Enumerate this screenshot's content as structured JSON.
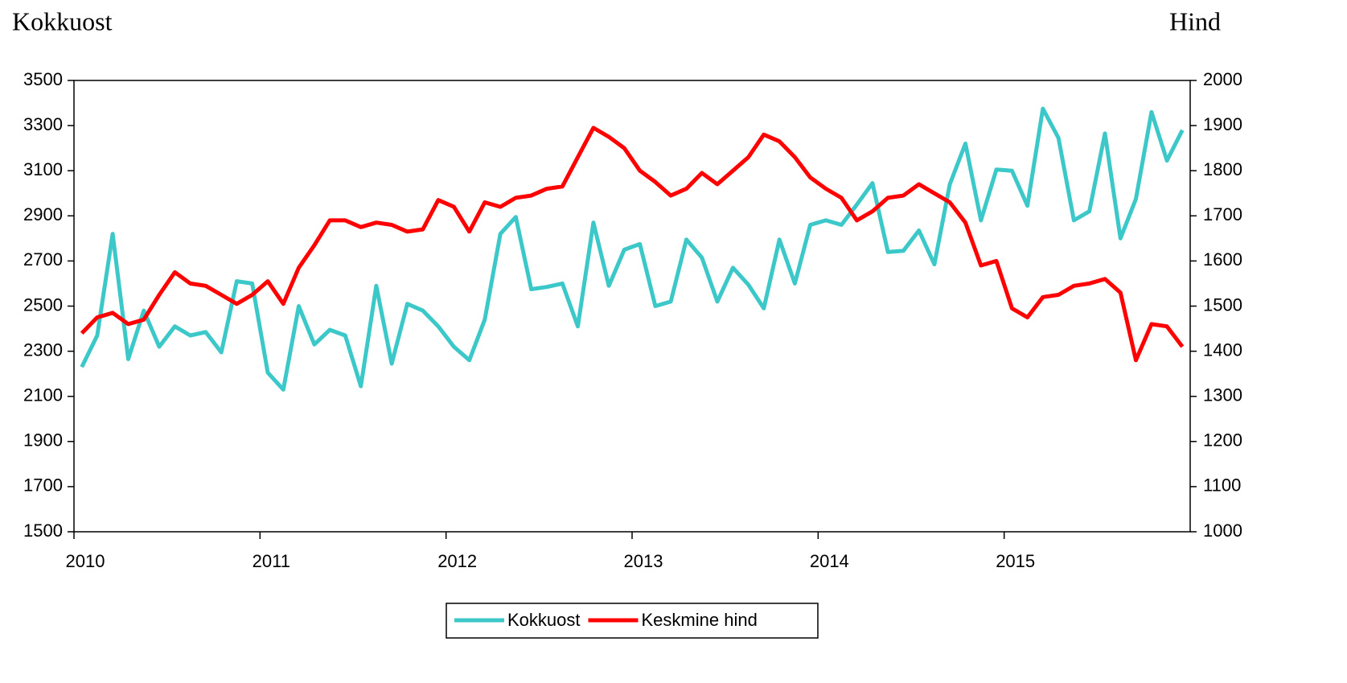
{
  "chart_data": {
    "type": "line",
    "y_label": "Kokkuost",
    "y2_label": "Hind",
    "x": [
      2010.042,
      2010.125,
      2010.208,
      2010.292,
      2010.375,
      2010.458,
      2010.542,
      2010.625,
      2010.708,
      2010.792,
      2010.875,
      2010.958,
      2011.042,
      2011.125,
      2011.208,
      2011.292,
      2011.375,
      2011.458,
      2011.542,
      2011.625,
      2011.708,
      2011.792,
      2011.875,
      2011.958,
      2012.042,
      2012.125,
      2012.208,
      2012.292,
      2012.375,
      2012.458,
      2012.542,
      2012.625,
      2012.708,
      2012.792,
      2012.875,
      2012.958,
      2013.042,
      2013.125,
      2013.208,
      2013.292,
      2013.375,
      2013.458,
      2013.542,
      2013.625,
      2013.708,
      2013.792,
      2013.875,
      2013.958,
      2014.042,
      2014.125,
      2014.208,
      2014.292,
      2014.375,
      2014.458,
      2014.542,
      2014.625,
      2014.708,
      2014.792,
      2014.875,
      2014.958,
      2015.042,
      2015.125,
      2015.208,
      2015.292,
      2015.375,
      2015.458,
      2015.542,
      2015.625,
      2015.708,
      2015.792,
      2015.875,
      2015.958
    ],
    "series": [
      {
        "name": "Kokkuost",
        "color": "#3cc8c8",
        "axis": "y",
        "values": [
          2230,
          2370,
          2820,
          2265,
          2480,
          2320,
          2410,
          2370,
          2385,
          2295,
          2610,
          2600,
          2205,
          2130,
          2500,
          2330,
          2395,
          2370,
          2145,
          2590,
          2245,
          2510,
          2480,
          2410,
          2320,
          2260,
          2440,
          2820,
          2895,
          2575,
          2585,
          2600,
          2410,
          2870,
          2590,
          2750,
          2775,
          2500,
          2520,
          2795,
          2715,
          2520,
          2670,
          2595,
          2490,
          2795,
          2600,
          2860,
          2880,
          2860,
          2950,
          3045,
          2740,
          2745,
          2835,
          2685,
          3040,
          3220,
          2880,
          3105,
          3100,
          2945,
          3375,
          3245,
          2880,
          2920,
          3265,
          2800,
          2975,
          3360,
          3145,
          3280
        ]
      },
      {
        "name": "Keskmine hind",
        "color": "#ff0000",
        "axis": "y2",
        "values": [
          1440,
          1475,
          1485,
          1460,
          1470,
          1525,
          1575,
          1550,
          1545,
          1525,
          1505,
          1525,
          1555,
          1505,
          1585,
          1635,
          1690,
          1690,
          1675,
          1685,
          1680,
          1665,
          1670,
          1735,
          1720,
          1665,
          1730,
          1720,
          1740,
          1745,
          1760,
          1765,
          1830,
          1895,
          1875,
          1850,
          1800,
          1775,
          1745,
          1760,
          1795,
          1770,
          1800,
          1830,
          1880,
          1865,
          1830,
          1785,
          1760,
          1740,
          1690,
          1710,
          1740,
          1745,
          1770,
          1750,
          1730,
          1685,
          1590,
          1600,
          1495,
          1475,
          1520,
          1525,
          1545,
          1550,
          1560,
          1530,
          1380,
          1460,
          1455,
          1410
        ]
      }
    ],
    "xlim": [
      2010,
      2016
    ],
    "xticks": [
      2010,
      2011,
      2012,
      2013,
      2014,
      2015
    ],
    "ylim": [
      1500,
      3500
    ],
    "yticks": [
      1500,
      1700,
      1900,
      2100,
      2300,
      2500,
      2700,
      2900,
      3100,
      3300,
      3500
    ],
    "y2lim": [
      1000,
      2000
    ],
    "y2ticks": [
      1000,
      1100,
      1200,
      1300,
      1400,
      1500,
      1600,
      1700,
      1800,
      1900,
      2000
    ],
    "legend": "bottom"
  }
}
